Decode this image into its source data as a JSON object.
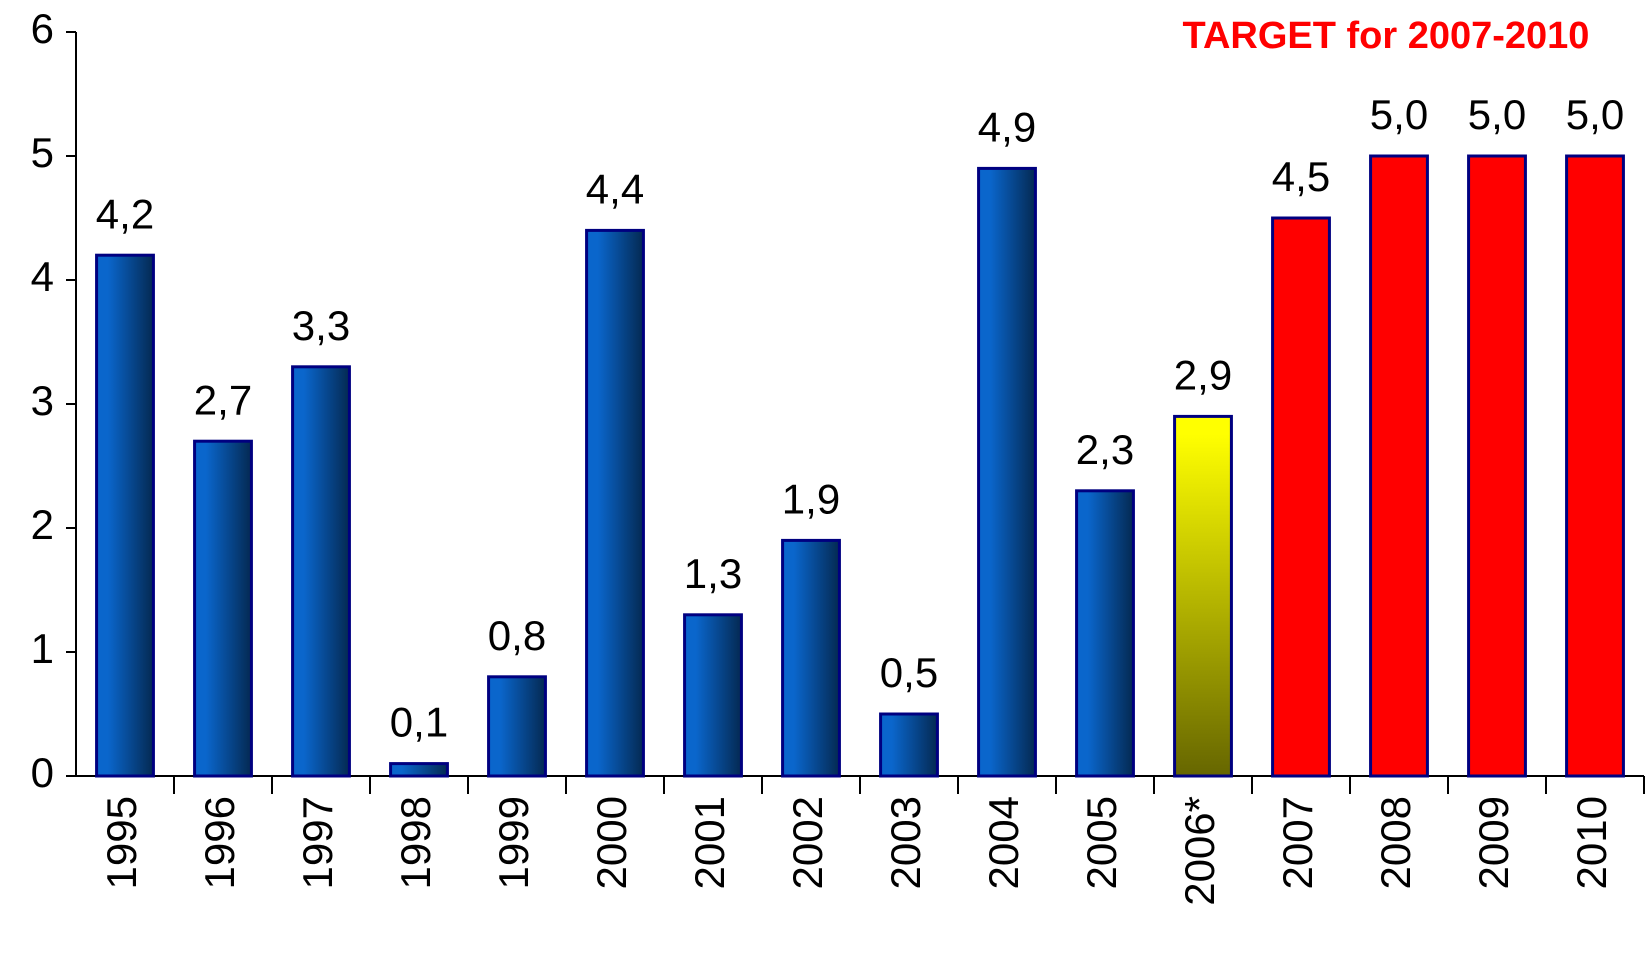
{
  "chart_data": {
    "type": "bar",
    "annotation": "TARGET for 2007-2010",
    "categories": [
      "1995",
      "1996",
      "1997",
      "1998",
      "1999",
      "2000",
      "2001",
      "2002",
      "2003",
      "2004",
      "2005",
      "2006*",
      "2007",
      "2008",
      "2009",
      "2010"
    ],
    "values": [
      4.2,
      2.7,
      3.3,
      0.1,
      0.8,
      4.4,
      1.3,
      1.9,
      0.5,
      4.9,
      2.3,
      2.9,
      4.5,
      5.0,
      5.0,
      5.0
    ],
    "value_labels": [
      "4,2",
      "2,7",
      "3,3",
      "0,1",
      "0,8",
      "4,4",
      "1,3",
      "1,9",
      "0,5",
      "4,9",
      "2,3",
      "2,9",
      "4,5",
      "5,0",
      "5,0",
      "5,0"
    ],
    "colors": [
      "#0a66cc",
      "#0a66cc",
      "#0a66cc",
      "#0a66cc",
      "#0a66cc",
      "#0a66cc",
      "#0a66cc",
      "#0a66cc",
      "#0a66cc",
      "#0a66cc",
      "#0a66cc",
      "#ffff00",
      "#ff0000",
      "#ff0000",
      "#ff0000",
      "#ff0000"
    ],
    "ylim": [
      0,
      6
    ],
    "yticks": [
      0,
      1,
      2,
      3,
      4,
      5,
      6
    ],
    "grid": false
  }
}
